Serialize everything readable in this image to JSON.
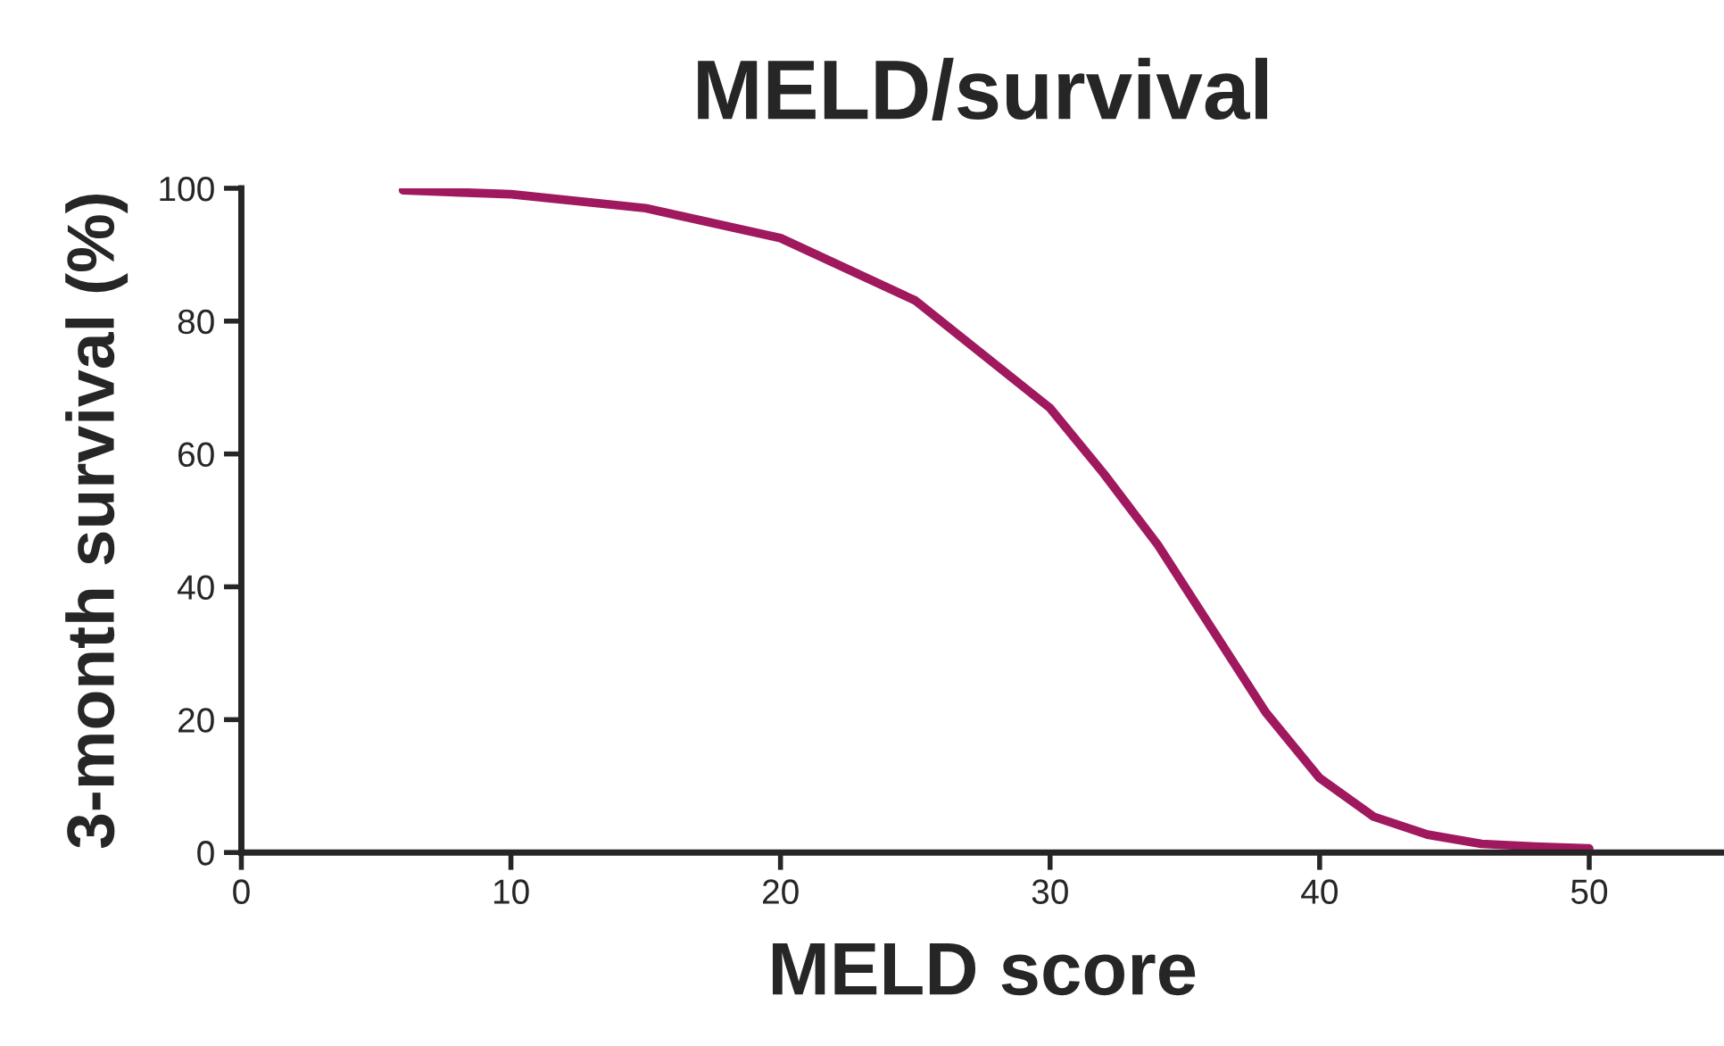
{
  "chart_data": {
    "type": "line",
    "title": "MELD/survival",
    "xlabel": "MELD score",
    "ylabel": "3-month survival (%)",
    "x": [
      6,
      10,
      15,
      20,
      25,
      27.5,
      30,
      32,
      34,
      36,
      38,
      40,
      42,
      44,
      46,
      48,
      50
    ],
    "series": [
      {
        "color": "#a0195f",
        "values": [
          99.7,
          99.1,
          97.0,
          92.5,
          83.1,
          75.0,
          66.9,
          57,
          46.3,
          33.7,
          21.1,
          11.2,
          5.4,
          2.7,
          1.3,
          0.9,
          0.6
        ]
      }
    ],
    "xlim": [
      0,
      55
    ],
    "xticks": [
      0,
      10,
      20,
      30,
      40,
      50
    ],
    "ylim": [
      0,
      100
    ],
    "yticks": [
      0,
      20,
      40,
      60,
      80,
      100
    ],
    "grid": false,
    "marker": "none",
    "line_style": "solid"
  }
}
